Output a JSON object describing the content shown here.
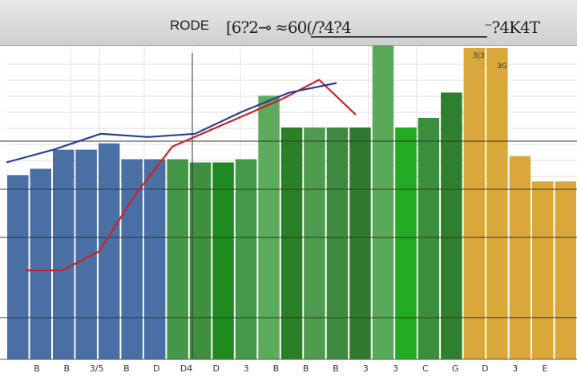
{
  "title_bar": {
    "left": "RODE",
    "middle": "[6?2⊸ ≈60(/?4?4",
    "right": "⁻?4K4T"
  },
  "chart_data": {
    "type": "bar",
    "title": "RODE",
    "grid": true,
    "ylim": [
      0,
      100
    ],
    "x_tick_labels": [
      "B",
      "B",
      "3/5",
      "B",
      "D",
      "D4",
      "D",
      "3",
      "B",
      "B",
      "B",
      "3",
      "3",
      "C",
      "G",
      "D",
      "3",
      "E"
    ],
    "annotations": [
      "3|3",
      "3G"
    ],
    "series": [
      {
        "values": [
          58,
          60,
          66,
          66,
          68,
          63,
          63
        ],
        "color": "#4a6fa5"
      },
      {
        "values": [
          63,
          62,
          62,
          63,
          83,
          73,
          73,
          73,
          73,
          100,
          73,
          76,
          84
        ],
        "color": "#4f9a4f"
      },
      {
        "values": [
          98,
          98,
          64,
          56,
          56
        ],
        "color": "#d9a73a"
      }
    ],
    "lines": [
      {
        "color": "#cc2222",
        "values": [
          28,
          28,
          34,
          52,
          67,
          72,
          77,
          82,
          88,
          77
        ]
      },
      {
        "color": "#2a3f99",
        "values": [
          62,
          66,
          71,
          70,
          71,
          78,
          84,
          87
        ]
      }
    ]
  }
}
